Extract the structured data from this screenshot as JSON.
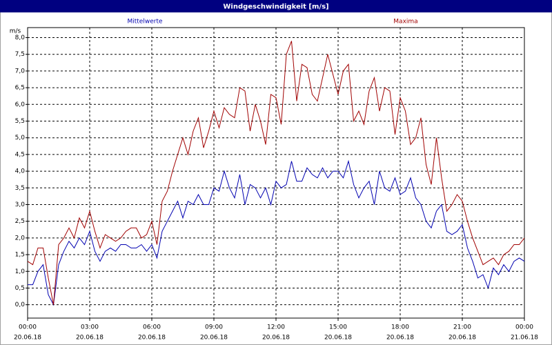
{
  "chart_data": {
    "type": "line",
    "title": "Windgeschwindigkeit [m/s]",
    "ylabel": "m/s",
    "x": [
      0,
      0.25,
      0.5,
      0.75,
      1,
      1.25,
      1.5,
      1.75,
      2,
      2.25,
      2.5,
      2.75,
      3,
      3.25,
      3.5,
      3.75,
      4,
      4.25,
      4.5,
      4.75,
      5,
      5.25,
      5.5,
      5.75,
      6,
      6.25,
      6.5,
      6.75,
      7,
      7.25,
      7.5,
      7.75,
      8,
      8.25,
      8.5,
      8.75,
      9,
      9.25,
      9.5,
      9.75,
      10,
      10.25,
      10.5,
      10.75,
      11,
      11.25,
      11.5,
      11.75,
      12,
      12.25,
      12.5,
      12.75,
      13,
      13.25,
      13.5,
      13.75,
      14,
      14.25,
      14.5,
      14.75,
      15,
      15.25,
      15.5,
      15.75,
      16,
      16.25,
      16.5,
      16.75,
      17,
      17.25,
      17.5,
      17.75,
      18,
      18.25,
      18.5,
      18.75,
      19,
      19.25,
      19.5,
      19.75,
      20,
      20.25,
      20.5,
      20.75,
      21,
      21.25,
      21.5,
      21.75,
      22,
      22.25,
      22.5,
      22.75,
      23,
      23.25,
      23.5,
      23.75,
      24
    ],
    "series": [
      {
        "name": "Mittelwerte",
        "color": "#0000b0",
        "values": [
          0.6,
          0.6,
          1.0,
          1.2,
          0.3,
          0.0,
          1.2,
          1.6,
          1.9,
          1.7,
          2.0,
          1.8,
          2.2,
          1.6,
          1.3,
          1.6,
          1.7,
          1.6,
          1.8,
          1.8,
          1.7,
          1.7,
          1.8,
          1.6,
          1.8,
          1.4,
          2.2,
          2.5,
          2.8,
          3.1,
          2.6,
          3.1,
          3.0,
          3.3,
          3.0,
          3.0,
          3.5,
          3.4,
          4.0,
          3.5,
          3.2,
          3.9,
          3.0,
          3.6,
          3.5,
          3.2,
          3.5,
          3.0,
          3.7,
          3.5,
          3.6,
          4.3,
          3.7,
          3.7,
          4.1,
          3.9,
          3.8,
          4.1,
          3.8,
          4.0,
          4.0,
          3.8,
          4.3,
          3.6,
          3.2,
          3.5,
          3.7,
          3.0,
          4.0,
          3.5,
          3.4,
          3.8,
          3.3,
          3.4,
          3.8,
          3.2,
          3.0,
          2.5,
          2.3,
          2.8,
          3.0,
          2.2,
          2.1,
          2.2,
          2.4,
          1.7,
          1.3,
          0.8,
          0.9,
          0.5,
          1.1,
          0.9,
          1.2,
          1.0,
          1.3,
          1.4,
          1.3
        ]
      },
      {
        "name": "Maxima",
        "color": "#a00000",
        "values": [
          1.3,
          1.2,
          1.7,
          1.7,
          0.8,
          0.0,
          1.8,
          2.0,
          2.3,
          2.0,
          2.6,
          2.3,
          2.8,
          2.2,
          1.7,
          2.1,
          2.0,
          1.9,
          2.0,
          2.2,
          2.3,
          2.3,
          2.0,
          2.1,
          2.5,
          1.8,
          3.1,
          3.4,
          4.0,
          4.5,
          5.0,
          4.5,
          5.2,
          5.6,
          4.7,
          5.2,
          5.8,
          5.3,
          5.9,
          5.7,
          5.6,
          6.5,
          6.4,
          5.2,
          6.0,
          5.5,
          4.8,
          6.3,
          6.2,
          5.4,
          7.5,
          7.9,
          6.1,
          7.2,
          7.1,
          6.3,
          6.1,
          6.8,
          7.5,
          6.9,
          6.3,
          7.0,
          7.2,
          5.5,
          5.8,
          5.4,
          6.4,
          6.8,
          5.8,
          6.5,
          6.4,
          5.1,
          6.2,
          5.8,
          4.8,
          5.0,
          5.6,
          4.2,
          3.6,
          5.0,
          3.8,
          2.8,
          3.0,
          3.3,
          3.1,
          2.5,
          2.0,
          1.6,
          1.2,
          1.3,
          1.4,
          1.2,
          1.5,
          1.6,
          1.8,
          1.8,
          2.0
        ]
      }
    ],
    "xlim": [
      0,
      24
    ],
    "xticks": [
      {
        "value": 0,
        "label": "00:00"
      },
      {
        "value": 3,
        "label": "03:00"
      },
      {
        "value": 6,
        "label": "06:00"
      },
      {
        "value": 9,
        "label": "09:00"
      },
      {
        "value": 12,
        "label": "12:00"
      },
      {
        "value": 15,
        "label": "15:00"
      },
      {
        "value": 18,
        "label": "18:00"
      },
      {
        "value": 21,
        "label": "21:00"
      },
      {
        "value": 24,
        "label": "00:00"
      }
    ],
    "xtick_dates": [
      "20.06.18",
      "20.06.18",
      "20.06.18",
      "20.06.18",
      "20.06.18",
      "20.06.18",
      "20.06.18",
      "20.06.18",
      "21.06.18"
    ],
    "ylim": [
      -0.4,
      8.3
    ],
    "yticks": [
      {
        "value": 0,
        "label": "0,0"
      },
      {
        "value": 0.5,
        "label": "0,5"
      },
      {
        "value": 1,
        "label": "1,0"
      },
      {
        "value": 1.5,
        "label": "1,5"
      },
      {
        "value": 2,
        "label": "2,0"
      },
      {
        "value": 2.5,
        "label": "2,5"
      },
      {
        "value": 3,
        "label": "3,0"
      },
      {
        "value": 3.5,
        "label": "3,5"
      },
      {
        "value": 4,
        "label": "4,0"
      },
      {
        "value": 4.5,
        "label": "4,5"
      },
      {
        "value": 5,
        "label": "5,0"
      },
      {
        "value": 5.5,
        "label": "5,5"
      },
      {
        "value": 6,
        "label": "6,0"
      },
      {
        "value": 6.5,
        "label": "6,5"
      },
      {
        "value": 7,
        "label": "7,0"
      },
      {
        "value": 7.5,
        "label": "7,5"
      },
      {
        "value": 8,
        "label": "8,0"
      }
    ],
    "grid": true
  }
}
